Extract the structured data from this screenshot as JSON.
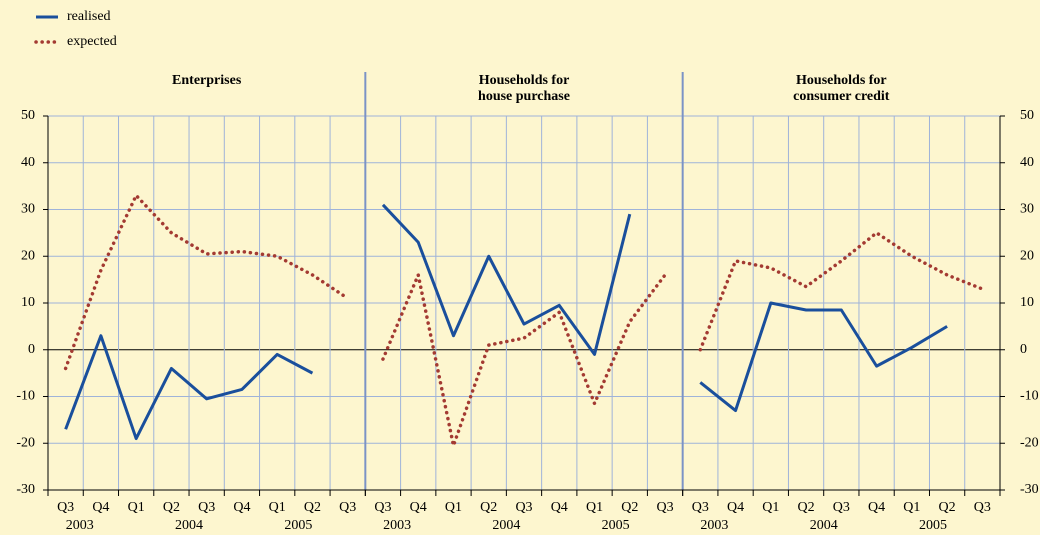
{
  "chart_data": {
    "type": "line",
    "ylim": [
      -30,
      50
    ],
    "yticks": [
      -30,
      -20,
      -10,
      0,
      10,
      20,
      30,
      40,
      50
    ],
    "categories": [
      "Q3",
      "Q4",
      "Q1",
      "Q2",
      "Q3",
      "Q4",
      "Q1",
      "Q2",
      "Q3"
    ],
    "years": [
      "2003",
      "2004",
      "2005"
    ],
    "series": [
      {
        "name": "realised",
        "color": "#1a4f9c",
        "style": "solid"
      },
      {
        "name": "expected",
        "color": "#a33a32",
        "style": "dotted"
      }
    ],
    "panels": [
      {
        "title": [
          "Enterprises"
        ],
        "values": [
          [
            -17,
            3,
            -19,
            -4,
            -10.5,
            -8.5,
            -1,
            -5,
            null
          ],
          [
            -4,
            17,
            33,
            25,
            20.5,
            21,
            20,
            16,
            11
          ]
        ]
      },
      {
        "title": [
          "Households for",
          "house purchase"
        ],
        "values": [
          [
            31,
            23,
            3,
            20,
            5.5,
            9.5,
            -1,
            29,
            null
          ],
          [
            -2,
            16,
            -20.5,
            1,
            2.5,
            8,
            -11.5,
            6,
            16
          ]
        ]
      },
      {
        "title": [
          "Households for",
          "consumer credit"
        ],
        "values": [
          [
            -7,
            -13,
            10,
            8.5,
            8.5,
            -3.5,
            0.5,
            5,
            null
          ],
          [
            0,
            19,
            17.5,
            13.5,
            19,
            25,
            20,
            16,
            13
          ]
        ]
      }
    ]
  }
}
